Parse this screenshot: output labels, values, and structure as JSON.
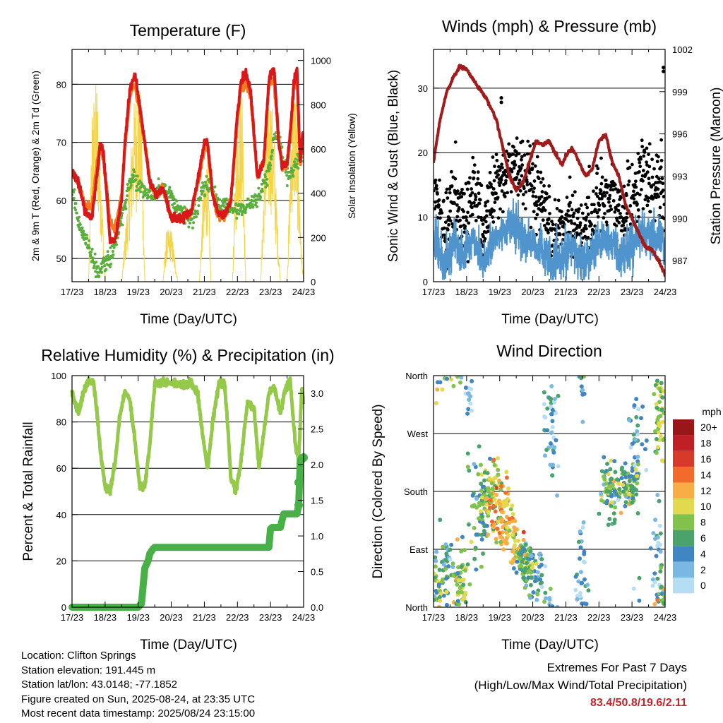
{
  "panels": {
    "temperature": {
      "title": "Temperature (F)",
      "ylabel_left": "2m & 9m T (Red, Orange) & 2m Td (Green)",
      "ylabel_right": "Solar Insolation (Yellow)",
      "xlabel": "Time (Day/UTC)"
    },
    "winds": {
      "title": "Winds (mph) & Pressure (mb)",
      "ylabel_left": "Sonic Wind & Gust (Blue, Black)",
      "ylabel_right": "Station Pressure (Maroon)",
      "xlabel": "Time (Day/UTC)"
    },
    "humidity": {
      "title": "Relative Humidity (%) & Precipitation (in)",
      "ylabel_left": "Percent & Total Rainfall",
      "xlabel": "Time (Day/UTC)"
    },
    "direction": {
      "title": "Wind Direction",
      "ylabel_left": "Direction (Colored By Speed)",
      "xlabel": "Time (Day/UTC)",
      "colorbar_title": "mph"
    }
  },
  "colors": {
    "t2m": "#d7191c",
    "t9m": "#f47a20",
    "dewpoint": "#5aae3c",
    "solar": "#f5d547",
    "wind": "#4f94cd",
    "gust": "#000000",
    "pressure": "#a01c1c",
    "rh": "#95c94a",
    "precip": "#47b046",
    "speed_scale": [
      "#b5def5",
      "#7ab8e3",
      "#3f86c2",
      "#4aa36a",
      "#80c24c",
      "#e3d94e",
      "#f8ad46",
      "#f26b2c",
      "#d83a29",
      "#bf1f26",
      "#991719"
    ]
  },
  "chart_data": [
    {
      "type": "line",
      "title": "Temperature (F)",
      "xlabel": "Time (Day/UTC)",
      "ylabel": "2m & 9m T (Red, Orange) & 2m Td (Green)",
      "ylabel_right": "Solar Insolation (Yellow)",
      "x_ticks": [
        "17/23",
        "18/23",
        "19/23",
        "20/23",
        "21/23",
        "22/23",
        "23/23",
        "24/23"
      ],
      "xlim": [
        0,
        7
      ],
      "ylim": [
        46,
        86
      ],
      "y_ticks": [
        50,
        60,
        70,
        80
      ],
      "ylim_right": [
        0,
        1050
      ],
      "y_ticks_right": [
        0,
        200,
        400,
        600,
        800,
        1000
      ],
      "grid": "horizontal",
      "series": [
        {
          "x": [
            0,
            0.2,
            0.4,
            0.6,
            0.75,
            0.85,
            0.95,
            1.05,
            1.15,
            1.3,
            1.5,
            1.6,
            1.75,
            1.9,
            2.05,
            2.2,
            2.35,
            2.55,
            2.75,
            3.0,
            3.3,
            3.6,
            3.85,
            4.0,
            4.1,
            4.25,
            4.4,
            4.6,
            4.8,
            5.0,
            5.1,
            5.25,
            5.4,
            5.6,
            5.8,
            5.95,
            6.1,
            6.25,
            6.35,
            6.5,
            6.6,
            6.7,
            6.8,
            6.9,
            6.97,
            7.0
          ],
          "y": [
            65,
            63,
            58,
            57,
            64,
            70,
            68,
            61,
            53,
            53,
            60,
            70,
            79,
            82,
            76,
            70,
            63,
            61,
            62,
            57,
            57,
            58,
            65,
            70,
            70,
            61,
            58,
            57,
            60,
            75,
            80,
            82,
            79,
            64,
            67,
            81,
            83,
            70,
            66,
            66,
            72,
            80,
            83,
            66,
            72,
            71
          ]
        },
        {
          "x": [
            0,
            0.2,
            0.4,
            0.6,
            0.75,
            0.85,
            0.95,
            1.05,
            1.15,
            1.3,
            1.5,
            1.6,
            1.75,
            1.9,
            2.05,
            2.2,
            2.35,
            2.55,
            2.75,
            3.0,
            3.3,
            3.6,
            3.85,
            4.0,
            4.1,
            4.25,
            4.4,
            4.6,
            4.8,
            5.0,
            5.1,
            5.25,
            5.4,
            5.6,
            5.8,
            5.95,
            6.1,
            6.25,
            6.35,
            6.5,
            6.6,
            6.7,
            6.8,
            6.9,
            6.97,
            7.0
          ],
          "y": [
            65,
            63,
            59,
            59,
            66,
            69,
            67,
            62,
            56,
            55,
            61,
            69,
            78,
            80,
            75,
            70,
            63,
            61,
            62,
            57,
            57,
            58,
            64,
            69,
            69,
            61,
            58,
            57,
            60,
            74,
            79,
            80,
            78,
            64,
            67,
            80,
            81,
            70,
            66,
            66,
            71,
            79,
            81,
            66,
            71,
            70
          ]
        },
        {
          "x": [
            0,
            0.2,
            0.35,
            0.5,
            0.65,
            0.8,
            0.95,
            1.1,
            1.25,
            1.4,
            1.55,
            1.7,
            1.85,
            2.0,
            2.15,
            2.3,
            2.5,
            2.75,
            3.0,
            3.25,
            3.5,
            3.75,
            4.0,
            4.15,
            4.3,
            4.5,
            4.75,
            5.0,
            5.25,
            5.5,
            5.65,
            5.8,
            6.0,
            6.1,
            6.25,
            6.45,
            6.6,
            6.75,
            6.9,
            7.0
          ],
          "y": [
            62,
            56,
            54,
            52,
            49,
            48,
            49,
            50,
            51,
            55,
            58,
            62,
            64,
            63,
            62,
            61,
            61,
            62,
            61,
            58,
            57,
            58,
            62,
            63,
            61,
            59,
            59,
            58,
            59,
            60,
            60,
            63,
            66,
            71,
            71,
            65,
            64,
            66,
            68,
            68
          ]
        },
        {
          "x": [
            0,
            0.2,
            0.35,
            0.5,
            0.6,
            0.75,
            0.9,
            1.0,
            1.1,
            1.5,
            1.7,
            1.85,
            2.0,
            2.1,
            2.2,
            2.5,
            2.75,
            2.85,
            3.0,
            3.2,
            3.6,
            3.85,
            3.95,
            4.1,
            4.2,
            4.5,
            4.7,
            4.85,
            5.0,
            5.15,
            5.25,
            5.5,
            5.7,
            5.85,
            6.0,
            6.1,
            6.2,
            6.3,
            6.5,
            6.65,
            6.75,
            6.85,
            6.95,
            7.0
          ],
          "y": [
            0,
            0,
            0,
            0,
            800,
            930,
            450,
            0,
            0,
            0,
            420,
            800,
            920,
            820,
            0,
            0,
            0,
            230,
            250,
            0,
            0,
            0,
            380,
            600,
            0,
            0,
            0,
            0,
            860,
            950,
            0,
            0,
            0,
            700,
            880,
            720,
            300,
            0,
            0,
            850,
            940,
            520,
            120,
            0
          ]
        }
      ],
      "series_names": [
        "2m T",
        "9m T",
        "2m Td",
        "Solar Insolation"
      ]
    },
    {
      "type": "line",
      "title": "Winds (mph) & Pressure (mb)",
      "xlabel": "Time (Day/UTC)",
      "ylabel": "Sonic Wind & Gust (Blue, Black)",
      "ylabel_right": "Station Pressure (Maroon)",
      "x_ticks": [
        "17/23",
        "18/23",
        "19/23",
        "20/23",
        "21/23",
        "22/23",
        "23/23",
        "24/23"
      ],
      "xlim": [
        0,
        7
      ],
      "ylim": [
        0,
        36
      ],
      "y_ticks": [
        0,
        10,
        20,
        30
      ],
      "ylim_right": [
        985.5,
        1002
      ],
      "y_ticks_right": [
        987,
        990,
        993,
        996,
        999,
        1002
      ],
      "grid": "horizontal",
      "series": [
        {
          "x": [
            0,
            0.3,
            0.6,
            0.9,
            1.2,
            1.5,
            1.8,
            2.1,
            2.4,
            2.7,
            3.0,
            3.3,
            3.6,
            3.9,
            4.2,
            4.5,
            4.8,
            5.1,
            5.4,
            5.7,
            6.0,
            6.3,
            6.6,
            6.9,
            7.0
          ],
          "y": [
            7,
            3,
            6,
            4,
            7,
            3,
            6,
            8,
            9,
            7,
            6,
            5,
            2,
            4,
            5,
            3,
            5,
            7,
            6,
            4,
            6,
            8,
            6,
            7,
            4
          ]
        },
        {
          "x": [
            0,
            0.3,
            0.6,
            0.9,
            1.2,
            1.5,
            1.8,
            2.1,
            2.4,
            2.7,
            3.0,
            3.3,
            3.6,
            3.9,
            4.2,
            4.5,
            4.8,
            5.1,
            5.4,
            5.7,
            6.0,
            6.3,
            6.6,
            6.9,
            7.0
          ],
          "y": [
            15,
            7,
            13,
            9,
            15,
            8,
            14,
            16,
            18,
            17,
            14,
            11,
            6,
            9,
            10,
            7,
            10,
            14,
            13,
            10,
            13,
            17,
            14,
            15,
            9
          ]
        },
        {
          "x": [
            0,
            0.2,
            0.4,
            0.6,
            0.8,
            1.0,
            1.1,
            1.3,
            1.6,
            1.9,
            2.1,
            2.3,
            2.5,
            2.7,
            2.9,
            3.1,
            3.3,
            3.5,
            3.7,
            3.9,
            4.0,
            4.2,
            4.4,
            4.6,
            4.8,
            5.0,
            5.2,
            5.4,
            5.6,
            5.8,
            6.0,
            6.2,
            6.4,
            6.6,
            6.8,
            7.0
          ],
          "y": [
            994,
            997,
            999,
            1000,
            1000.8,
            1000.6,
            1000.2,
            999.5,
            998.5,
            997,
            995,
            993,
            992,
            992.5,
            994,
            995.5,
            995.2,
            995.5,
            994.5,
            993.8,
            994.5,
            995,
            994,
            993,
            993.5,
            995.5,
            996,
            994,
            993,
            991,
            990,
            989,
            988,
            987.8,
            987,
            986
          ]
        }
      ],
      "series_names": [
        "Sonic Wind",
        "Gust",
        "Station Pressure"
      ],
      "extreme_gusts": [
        [
          2.05,
          28.5
        ],
        [
          2.05,
          27.8
        ],
        [
          6.95,
          33.2
        ],
        [
          6.95,
          32.6
        ]
      ]
    },
    {
      "type": "line",
      "title": "Relative Humidity (%) & Precipitation (in)",
      "xlabel": "Time (Day/UTC)",
      "ylabel": "Percent & Total Rainfall",
      "x_ticks": [
        "17/23",
        "18/23",
        "19/23",
        "20/23",
        "21/23",
        "22/23",
        "23/23",
        "24/23"
      ],
      "xlim": [
        0,
        7
      ],
      "ylim": [
        0,
        100
      ],
      "y_ticks": [
        0,
        20,
        40,
        60,
        80,
        100
      ],
      "ylim_right": [
        0.0,
        3.25
      ],
      "y_ticks_right": [
        0.0,
        0.5,
        1.0,
        1.5,
        2.0,
        2.5,
        3.0
      ],
      "grid": "horizontal",
      "series": [
        {
          "x": [
            0,
            0.1,
            0.2,
            0.35,
            0.5,
            0.65,
            0.75,
            0.85,
            1.0,
            1.15,
            1.3,
            1.45,
            1.6,
            1.75,
            1.9,
            2.05,
            2.2,
            2.35,
            2.5,
            2.7,
            3.0,
            3.3,
            3.6,
            3.8,
            3.95,
            4.1,
            4.25,
            4.45,
            4.6,
            4.7,
            4.8,
            4.95,
            5.1,
            5.3,
            5.5,
            5.65,
            5.8,
            5.95,
            6.1,
            6.3,
            6.45,
            6.6,
            6.75,
            6.85,
            6.95,
            7.0
          ],
          "y": [
            92,
            88,
            84,
            93,
            98,
            97,
            85,
            68,
            52,
            50,
            62,
            83,
            93,
            90,
            72,
            52,
            52,
            70,
            97,
            97,
            97,
            96,
            97,
            92,
            74,
            60,
            80,
            97,
            97,
            80,
            56,
            50,
            62,
            88,
            86,
            60,
            76,
            92,
            95,
            84,
            94,
            97,
            70,
            64,
            96,
            88
          ]
        },
        {
          "x": [
            0,
            0.5,
            1.0,
            1.5,
            2.0,
            2.1,
            2.15,
            2.2,
            2.3,
            2.35,
            2.45,
            2.5,
            3.0,
            4.0,
            5.0,
            5.6,
            5.95,
            6.0,
            6.05,
            6.3,
            6.35,
            6.4,
            6.8,
            6.85,
            6.9,
            6.95,
            7.0
          ],
          "y": [
            0,
            0,
            0,
            0,
            0,
            0.05,
            0.3,
            0.55,
            0.65,
            0.75,
            0.82,
            0.84,
            0.84,
            0.84,
            0.84,
            0.84,
            0.84,
            1.1,
            1.12,
            1.12,
            1.22,
            1.31,
            1.31,
            1.43,
            2.06,
            2.1,
            2.11
          ]
        }
      ],
      "series_names": [
        "Relative Humidity",
        "Total Precipitation"
      ]
    },
    {
      "type": "scatter",
      "title": "Wind Direction",
      "xlabel": "Time (Day/UTC)",
      "ylabel": "Direction (Colored By Speed)",
      "x_ticks": [
        "17/23",
        "18/23",
        "19/23",
        "20/23",
        "21/23",
        "22/23",
        "23/23",
        "24/23"
      ],
      "xlim": [
        0,
        7
      ],
      "ylim": [
        0,
        360
      ],
      "y_ticks": [
        0,
        90,
        180,
        270,
        360
      ],
      "y_tick_labels": [
        "North",
        "East",
        "South",
        "West",
        "North"
      ],
      "grid": "horizontal",
      "colorbar": {
        "title": "mph",
        "labels": [
          "20+",
          "18",
          "16",
          "14",
          "12",
          "10",
          "8",
          "6",
          "4",
          "2",
          "0"
        ]
      },
      "clusters": [
        {
          "x": 0.1,
          "y": 30,
          "sx": 0.12,
          "sy": 25,
          "speed": 6,
          "n": 40
        },
        {
          "x": 0.35,
          "y": 60,
          "sx": 0.12,
          "sy": 30,
          "speed": 4,
          "n": 35
        },
        {
          "x": 0.8,
          "y": 40,
          "sx": 0.12,
          "sy": 25,
          "speed": 8,
          "n": 60
        },
        {
          "x": 1.05,
          "y": 330,
          "sx": 0.06,
          "sy": 20,
          "speed": 2,
          "n": 15
        },
        {
          "x": 1.45,
          "y": 160,
          "sx": 0.18,
          "sy": 40,
          "speed": 6,
          "n": 80
        },
        {
          "x": 1.8,
          "y": 175,
          "sx": 0.15,
          "sy": 30,
          "speed": 10,
          "n": 70
        },
        {
          "x": 2.15,
          "y": 140,
          "sx": 0.12,
          "sy": 25,
          "speed": 12,
          "n": 60
        },
        {
          "x": 2.45,
          "y": 100,
          "sx": 0.12,
          "sy": 20,
          "speed": 11,
          "n": 45
        },
        {
          "x": 2.8,
          "y": 70,
          "sx": 0.15,
          "sy": 15,
          "speed": 6,
          "n": 70
        },
        {
          "x": 3.15,
          "y": 45,
          "sx": 0.15,
          "sy": 20,
          "speed": 4,
          "n": 40
        },
        {
          "x": 3.55,
          "y": 290,
          "sx": 0.1,
          "sy": 40,
          "speed": 3,
          "n": 50
        },
        {
          "x": 4.5,
          "y": 40,
          "sx": 0.1,
          "sy": 45,
          "speed": 3,
          "n": 40
        },
        {
          "x": 5.4,
          "y": 180,
          "sx": 0.18,
          "sy": 25,
          "speed": 6,
          "n": 80
        },
        {
          "x": 5.95,
          "y": 185,
          "sx": 0.12,
          "sy": 20,
          "speed": 7,
          "n": 60
        },
        {
          "x": 6.1,
          "y": 280,
          "sx": 0.12,
          "sy": 50,
          "speed": 4,
          "n": 40
        },
        {
          "x": 6.75,
          "y": 70,
          "sx": 0.08,
          "sy": 40,
          "speed": 3,
          "n": 30
        },
        {
          "x": 6.85,
          "y": 300,
          "sx": 0.1,
          "sy": 45,
          "speed": 9,
          "n": 50
        },
        {
          "x": 6.95,
          "y": 15,
          "sx": 0.05,
          "sy": 10,
          "speed": 6,
          "n": 12
        }
      ]
    }
  ],
  "station_info": {
    "location": "Location: Clifton Springs",
    "elevation": "Station elevation: 191.445 m",
    "latlon": "Station lat/lon: 43.0148; -77.1852",
    "created": "Figure created on Sun, 2025-08-24, at 23:35 UTC",
    "recent": "Most recent data timestamp: 2025/08/24 23:15:00"
  },
  "extremes": {
    "title": "Extremes For Past 7 Days",
    "subtitle": "(High/Low/Max Wind/Total Precipitation)",
    "values": "83.4/50.8/19.6/2.11"
  }
}
